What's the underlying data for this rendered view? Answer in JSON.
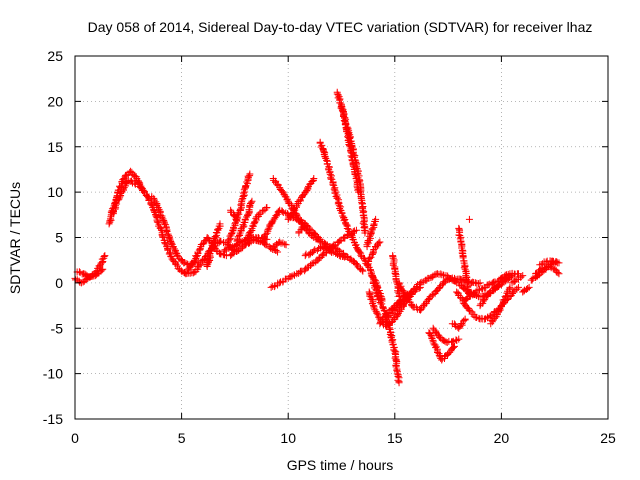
{
  "chart_data": {
    "type": "scatter",
    "title": "Day 058 of 2014, Sidereal Day-to-day VTEC variation (SDTVAR) for receiver lhaz",
    "xlabel": "GPS time / hours",
    "ylabel": "SDTVAR / TECUs",
    "xlim": [
      0,
      25
    ],
    "ylim": [
      -15,
      25
    ],
    "xticks": [
      0,
      5,
      10,
      15,
      20,
      25
    ],
    "yticks": [
      -15,
      -10,
      -5,
      0,
      5,
      10,
      15,
      20,
      25
    ],
    "grid": true,
    "marker": "plus",
    "color": "#ff0000",
    "series": [
      {
        "points": [
          [
            0.0,
            0.5
          ],
          [
            0.3,
            0.0
          ],
          [
            0.6,
            0.5
          ],
          [
            0.9,
            1.0
          ],
          [
            1.2,
            2.0
          ],
          [
            1.4,
            3.0
          ]
        ]
      },
      {
        "points": [
          [
            0.1,
            1.2
          ],
          [
            0.4,
            1.0
          ],
          [
            0.7,
            0.6
          ],
          [
            1.0,
            0.9
          ],
          [
            1.3,
            1.5
          ]
        ]
      },
      {
        "points": [
          [
            1.6,
            6.5
          ],
          [
            1.9,
            8.5
          ],
          [
            2.2,
            10.0
          ],
          [
            2.5,
            11.3
          ],
          [
            2.8,
            11.0
          ],
          [
            3.1,
            10.5
          ],
          [
            3.4,
            9.5
          ],
          [
            3.7,
            8.0
          ],
          [
            4.0,
            6.0
          ],
          [
            4.3,
            4.0
          ],
          [
            4.6,
            2.5
          ],
          [
            4.9,
            1.5
          ],
          [
            5.2,
            1.0
          ],
          [
            5.6,
            1.2
          ],
          [
            6.0,
            2.5
          ],
          [
            6.4,
            3.8
          ],
          [
            6.8,
            4.6
          ],
          [
            7.2,
            4.2
          ],
          [
            7.5,
            3.5
          ]
        ]
      },
      {
        "points": [
          [
            1.7,
            7.5
          ],
          [
            2.0,
            10.0
          ],
          [
            2.3,
            11.5
          ],
          [
            2.6,
            12.3
          ],
          [
            2.9,
            11.5
          ],
          [
            3.2,
            10.2
          ]
        ]
      },
      {
        "points": [
          [
            3.6,
            9.5
          ],
          [
            3.9,
            8.3
          ],
          [
            4.2,
            6.5
          ],
          [
            4.5,
            4.5
          ],
          [
            4.8,
            3.0
          ],
          [
            5.1,
            2.2
          ],
          [
            5.4,
            2.0
          ],
          [
            5.8,
            2.3
          ]
        ]
      },
      {
        "points": [
          [
            5.3,
            1.5
          ],
          [
            5.6,
            2.5
          ],
          [
            5.9,
            4.0
          ],
          [
            6.2,
            5.0
          ],
          [
            6.5,
            4.0
          ],
          [
            6.8,
            3.2
          ],
          [
            7.1,
            3.0
          ]
        ]
      },
      {
        "points": [
          [
            6.2,
            1.8
          ],
          [
            6.5,
            4.5
          ],
          [
            6.8,
            6.5
          ]
        ]
      },
      {
        "points": [
          [
            7.6,
            4.6
          ],
          [
            7.8,
            5.8
          ],
          [
            8.1,
            7.5
          ],
          [
            8.3,
            9.0
          ]
        ]
      },
      {
        "points": [
          [
            7.2,
            4.5
          ],
          [
            7.5,
            6.5
          ],
          [
            7.8,
            8.5
          ],
          [
            8.0,
            10.5
          ],
          [
            8.2,
            12.0
          ]
        ]
      },
      {
        "points": [
          [
            7.3,
            8.0
          ],
          [
            7.5,
            7.3
          ],
          [
            7.6,
            6.8
          ]
        ]
      },
      {
        "points": [
          [
            7.3,
            3.0
          ],
          [
            7.6,
            3.5
          ],
          [
            8.0,
            4.2
          ],
          [
            8.4,
            4.8
          ],
          [
            8.8,
            4.5
          ],
          [
            9.2,
            3.8
          ],
          [
            9.5,
            3.4
          ]
        ]
      },
      {
        "points": [
          [
            7.0,
            3.5
          ],
          [
            7.4,
            4.0
          ],
          [
            7.8,
            4.5
          ],
          [
            8.2,
            5.0
          ],
          [
            8.6,
            5.0
          ],
          [
            9.0,
            4.8
          ]
        ]
      },
      {
        "points": [
          [
            8.0,
            4.5
          ],
          [
            8.3,
            6.0
          ],
          [
            8.6,
            7.5
          ],
          [
            9.0,
            8.3
          ]
        ]
      },
      {
        "points": [
          [
            9.3,
            11.5
          ],
          [
            9.6,
            10.5
          ],
          [
            10.0,
            9.0
          ],
          [
            10.4,
            7.5
          ],
          [
            10.8,
            6.0
          ],
          [
            11.2,
            5.0
          ],
          [
            11.6,
            4.5
          ],
          [
            12.0,
            4.0
          ],
          [
            12.4,
            3.5
          ],
          [
            12.8,
            2.8
          ],
          [
            13.2,
            2.0
          ],
          [
            13.5,
            1.3
          ]
        ]
      },
      {
        "points": [
          [
            8.8,
            4.6
          ],
          [
            9.2,
            6.5
          ],
          [
            9.6,
            8.0
          ],
          [
            10.0,
            7.5
          ],
          [
            10.4,
            7.0
          ],
          [
            10.8,
            6.5
          ]
        ]
      },
      {
        "points": [
          [
            10.0,
            7.0
          ],
          [
            10.4,
            8.5
          ],
          [
            10.8,
            10.0
          ],
          [
            11.2,
            11.5
          ]
        ]
      },
      {
        "points": [
          [
            9.3,
            4.0
          ],
          [
            9.6,
            4.5
          ],
          [
            9.9,
            4.2
          ]
        ]
      },
      {
        "points": [
          [
            9.2,
            -0.5
          ],
          [
            9.6,
            0.0
          ],
          [
            10.0,
            0.5
          ],
          [
            10.4,
            1.0
          ],
          [
            10.8,
            1.5
          ],
          [
            11.2,
            2.2
          ],
          [
            11.6,
            3.0
          ],
          [
            12.0,
            3.8
          ],
          [
            12.4,
            4.6
          ],
          [
            12.8,
            5.3
          ],
          [
            13.2,
            5.8
          ]
        ]
      },
      {
        "points": [
          [
            10.8,
            3.0
          ],
          [
            11.2,
            3.5
          ],
          [
            11.6,
            4.0
          ],
          [
            12.0,
            3.5
          ],
          [
            12.4,
            3.0
          ],
          [
            12.8,
            2.8
          ]
        ]
      },
      {
        "points": [
          [
            10.5,
            5.5
          ],
          [
            10.8,
            6.5
          ],
          [
            11.2,
            5.5
          ],
          [
            11.5,
            4.8
          ]
        ]
      },
      {
        "points": [
          [
            11.5,
            15.5
          ],
          [
            11.8,
            13.5
          ],
          [
            12.1,
            11.0
          ],
          [
            12.4,
            8.5
          ],
          [
            12.7,
            6.5
          ],
          [
            13.0,
            5.0
          ],
          [
            13.3,
            3.5
          ],
          [
            13.6,
            2.5
          ],
          [
            13.9,
            1.2
          ],
          [
            14.2,
            -0.5
          ],
          [
            14.4,
            -2.0
          ]
        ]
      },
      {
        "points": [
          [
            12.3,
            21.0
          ],
          [
            12.6,
            18.5
          ],
          [
            12.9,
            16.0
          ],
          [
            13.2,
            13.0
          ],
          [
            13.4,
            10.5
          ],
          [
            13.5,
            8.0
          ],
          [
            13.6,
            5.5
          ]
        ]
      },
      {
        "points": [
          [
            12.5,
            19.5
          ],
          [
            12.7,
            17.5
          ],
          [
            12.9,
            15.0
          ],
          [
            13.1,
            12.5
          ],
          [
            13.3,
            10.0
          ]
        ]
      },
      {
        "points": [
          [
            13.7,
            4.0
          ],
          [
            13.9,
            5.5
          ],
          [
            14.1,
            7.0
          ]
        ]
      },
      {
        "points": [
          [
            13.7,
            2.0
          ],
          [
            14.0,
            3.5
          ],
          [
            14.3,
            4.5
          ]
        ]
      },
      {
        "points": [
          [
            13.9,
            1.0
          ],
          [
            14.2,
            -1.5
          ],
          [
            14.5,
            -3.0
          ],
          [
            14.8,
            -5.5
          ],
          [
            15.0,
            -7.5
          ],
          [
            15.1,
            -9.5
          ],
          [
            15.2,
            -11.0
          ]
        ]
      },
      {
        "points": [
          [
            13.8,
            -1.0
          ],
          [
            14.0,
            -2.5
          ],
          [
            14.3,
            -4.0
          ],
          [
            14.6,
            -4.8
          ],
          [
            15.0,
            -4.0
          ],
          [
            15.4,
            -2.5
          ],
          [
            15.8,
            -1.2
          ]
        ]
      },
      {
        "points": [
          [
            14.3,
            -4.5
          ],
          [
            14.6,
            -3.5
          ],
          [
            15.0,
            -2.5
          ],
          [
            15.4,
            -1.6
          ],
          [
            15.8,
            -1.0
          ],
          [
            16.2,
            -0.5
          ]
        ]
      },
      {
        "points": [
          [
            14.9,
            3.0
          ],
          [
            15.0,
            1.5
          ],
          [
            15.1,
            0.0
          ],
          [
            15.2,
            -1.5
          ]
        ]
      },
      {
        "points": [
          [
            15.2,
            0.0
          ],
          [
            15.5,
            -1.5
          ],
          [
            15.8,
            -2.5
          ],
          [
            16.2,
            -3.0
          ],
          [
            16.6,
            -1.8
          ],
          [
            17.0,
            -0.8
          ],
          [
            17.4,
            0.3
          ],
          [
            17.8,
            0.5
          ],
          [
            18.2,
            0.3
          ],
          [
            18.6,
            0.0
          ],
          [
            19.0,
            0.0
          ]
        ]
      },
      {
        "points": [
          [
            14.6,
            -4.0
          ],
          [
            15.0,
            -3.0
          ],
          [
            15.4,
            -2.0
          ],
          [
            15.8,
            -1.0
          ],
          [
            16.2,
            0.0
          ],
          [
            16.6,
            0.5
          ],
          [
            17.0,
            1.0
          ],
          [
            17.4,
            0.8
          ],
          [
            17.8,
            0.2
          ],
          [
            18.2,
            -0.5
          ],
          [
            18.6,
            -1.2
          ],
          [
            19.0,
            -1.5
          ],
          [
            19.4,
            -1.2
          ],
          [
            19.8,
            -0.5
          ],
          [
            20.2,
            0.2
          ],
          [
            20.5,
            0.8
          ]
        ]
      },
      {
        "points": [
          [
            16.6,
            -5.5
          ],
          [
            16.8,
            -6.5
          ],
          [
            17.0,
            -7.5
          ],
          [
            17.2,
            -8.5
          ],
          [
            17.5,
            -7.8
          ],
          [
            17.8,
            -7.0
          ]
        ]
      },
      {
        "points": [
          [
            16.8,
            -5.0
          ],
          [
            17.1,
            -6.0
          ],
          [
            17.4,
            -6.5
          ],
          [
            17.7,
            -6.5
          ],
          [
            18.0,
            -6.2
          ]
        ]
      },
      {
        "points": [
          [
            17.7,
            -4.5
          ],
          [
            18.0,
            -5.0
          ],
          [
            18.3,
            -4.0
          ]
        ]
      },
      {
        "points": [
          [
            17.9,
            -1.0
          ],
          [
            18.2,
            -2.0
          ],
          [
            18.5,
            -3.0
          ],
          [
            18.8,
            -3.8
          ],
          [
            19.2,
            -4.0
          ],
          [
            19.6,
            -3.5
          ],
          [
            20.0,
            -2.5
          ],
          [
            20.4,
            -1.5
          ],
          [
            20.8,
            -0.5
          ]
        ]
      },
      {
        "points": [
          [
            18.2,
            -2.0
          ],
          [
            18.5,
            -1.5
          ],
          [
            18.8,
            -1.0
          ],
          [
            19.2,
            -0.5
          ],
          [
            19.6,
            0.0
          ],
          [
            20.0,
            0.5
          ],
          [
            20.4,
            1.0
          ],
          [
            20.8,
            1.0
          ]
        ]
      },
      {
        "points": [
          [
            18.0,
            6.0
          ],
          [
            18.1,
            4.5
          ],
          [
            18.2,
            3.0
          ],
          [
            18.3,
            1.5
          ],
          [
            18.4,
            0.0
          ],
          [
            18.5,
            -1.5
          ]
        ]
      },
      {
        "points": [
          [
            18.5,
            7.0
          ]
        ]
      },
      {
        "points": [
          [
            19.0,
            -2.5
          ],
          [
            19.3,
            -1.5
          ],
          [
            19.6,
            -0.8
          ],
          [
            20.0,
            0.0
          ],
          [
            20.4,
            0.8
          ]
        ]
      },
      {
        "points": [
          [
            19.5,
            -4.5
          ],
          [
            19.8,
            -3.5
          ],
          [
            20.0,
            -2.5
          ],
          [
            20.2,
            -1.5
          ],
          [
            20.4,
            -0.5
          ]
        ]
      },
      {
        "points": [
          [
            20.5,
            0.0
          ],
          [
            20.8,
            0.4
          ],
          [
            21.0,
            0.8
          ]
        ]
      },
      {
        "points": [
          [
            21.0,
            -1.0
          ],
          [
            21.3,
            -0.5
          ]
        ]
      },
      {
        "points": [
          [
            21.4,
            0.3
          ],
          [
            21.7,
            0.8
          ],
          [
            22.0,
            1.4
          ],
          [
            22.3,
            2.0
          ],
          [
            22.6,
            2.3
          ]
        ]
      },
      {
        "points": [
          [
            21.6,
            1.0
          ],
          [
            21.9,
            1.6
          ],
          [
            22.2,
            1.8
          ],
          [
            22.5,
            1.5
          ],
          [
            22.7,
            1.0
          ]
        ]
      },
      {
        "points": [
          [
            21.8,
            2.0
          ],
          [
            22.1,
            2.3
          ],
          [
            22.4,
            2.4
          ],
          [
            22.7,
            2.2
          ]
        ]
      }
    ]
  }
}
